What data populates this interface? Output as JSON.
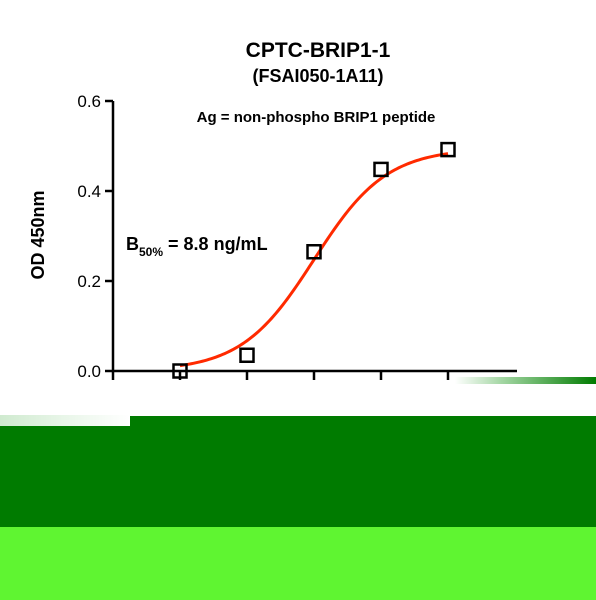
{
  "chart_data": {
    "type": "scatter",
    "title": "CPTC-BRIP1-1",
    "subtitle": "(FSAI050-1A11)",
    "annotation": "Ag = non-phospho BRIP1 peptide",
    "b50": {
      "label_main": "B",
      "label_sub": "50%",
      "label_rest": " = 8.8 ng/mL"
    },
    "ylabel": "OD 450nm",
    "ylim": [
      0,
      0.6
    ],
    "y_ticks": [
      {
        "value": 0.0,
        "label": "0.0"
      },
      {
        "value": 0.2,
        "label": "0.2"
      },
      {
        "value": 0.4,
        "label": "0.4"
      },
      {
        "value": 0.6,
        "label": "0.6"
      }
    ],
    "x_tick_count": 6,
    "points": [
      {
        "x": 1,
        "y": 0.0
      },
      {
        "x": 2,
        "y": 0.035
      },
      {
        "x": 3,
        "y": 0.265
      },
      {
        "x": 4,
        "y": 0.448
      },
      {
        "x": 5,
        "y": 0.492
      }
    ],
    "fit": {
      "model": "sigmoid",
      "bottom": 0.0,
      "top": 0.495,
      "midpoint_x": 3.0,
      "slope": 1.85
    },
    "grid": false,
    "colors": {
      "fit_line": "#ff2a00",
      "markers": "#000000",
      "axes": "#000000"
    }
  },
  "overlay": {
    "band_colors": [
      "#007b00",
      "#5ff531"
    ]
  }
}
